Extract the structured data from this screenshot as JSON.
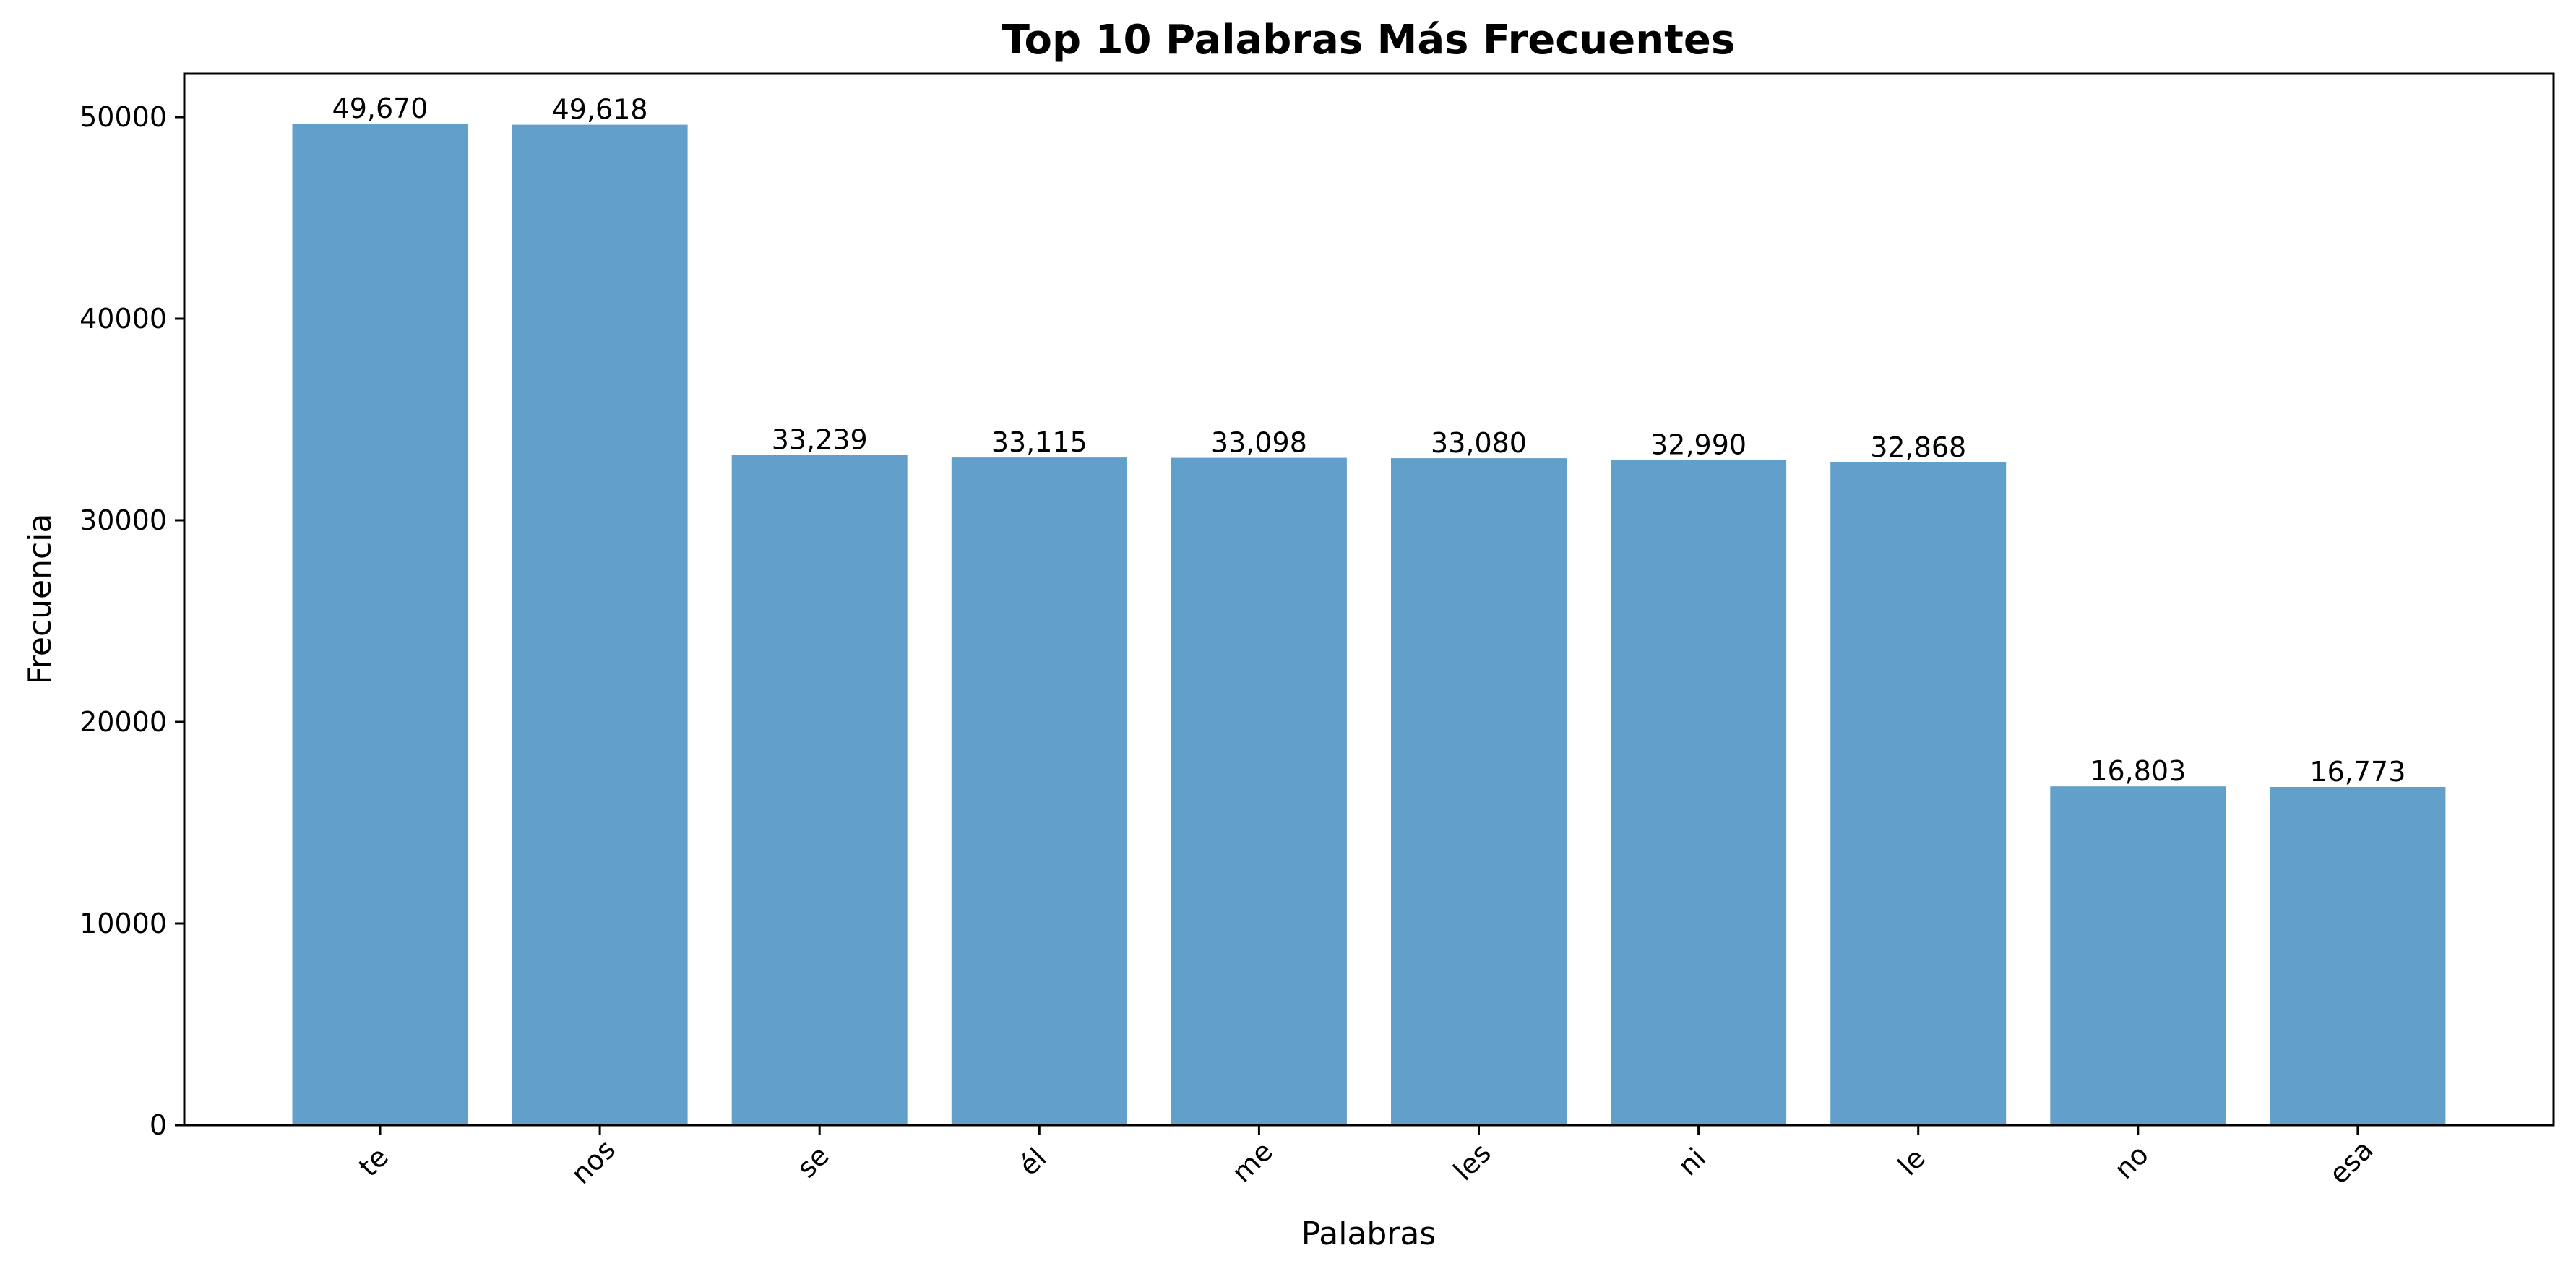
{
  "chart_data": {
    "type": "bar",
    "title": "Top 10 Palabras Más Frecuentes",
    "xlabel": "Palabras",
    "ylabel": "Frecuencia",
    "categories": [
      "te",
      "nos",
      "se",
      "él",
      "me",
      "les",
      "ni",
      "le",
      "no",
      "esa"
    ],
    "values": [
      49670,
      49618,
      33239,
      33115,
      33098,
      33080,
      32990,
      32868,
      16803,
      16773
    ],
    "value_labels": [
      "49,670",
      "49,618",
      "33,239",
      "33,115",
      "33,098",
      "33,080",
      "32,990",
      "32,868",
      "16,803",
      "16,773"
    ],
    "ylim": [
      0,
      52150
    ],
    "yticks": [
      0,
      10000,
      20000,
      30000,
      40000,
      50000
    ],
    "ytick_labels": [
      "0",
      "10000",
      "20000",
      "30000",
      "40000",
      "50000"
    ],
    "grid": false,
    "legend": "none",
    "bar_color": "#62a0cb"
  }
}
